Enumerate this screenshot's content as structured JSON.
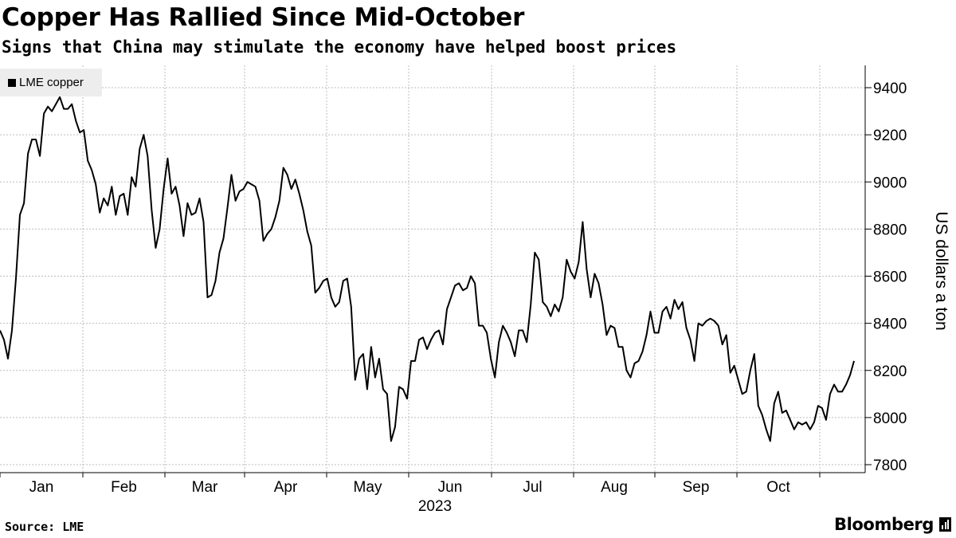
{
  "title": "Copper Has Rallied Since Mid-October",
  "subtitle": "Signs that China may stimulate the economy have helped boost prices",
  "legend": {
    "label": "LME copper",
    "color": "#000000"
  },
  "source": "Source: LME",
  "brand": {
    "name": "Bloomberg",
    "mark": "bloomberg-terminal-icon"
  },
  "chart_data": {
    "type": "line",
    "title": "Copper Has Rallied Since Mid-October",
    "subtitle": "Signs that China may stimulate the economy have helped boost prices",
    "xlabel": "2023",
    "ylabel": "US dollars a ton",
    "ylim": [
      7800,
      9400
    ],
    "yticks": [
      7800,
      8000,
      8200,
      8400,
      8600,
      8800,
      9000,
      9200,
      9400
    ],
    "x_ticks": [
      "Jan",
      "Feb",
      "Mar",
      "Apr",
      "May",
      "Jun",
      "Jul",
      "Aug",
      "Sep",
      "Oct"
    ],
    "year_label": "2023",
    "grid": true,
    "legend_position": "top-left",
    "series": [
      {
        "name": "LME copper",
        "color": "#000000",
        "points": [
          [
            0.0,
            8370
          ],
          [
            0.2,
            8330
          ],
          [
            0.4,
            8250
          ],
          [
            0.6,
            8370
          ],
          [
            0.8,
            8590
          ],
          [
            1.0,
            8860
          ],
          [
            1.2,
            8910
          ],
          [
            1.4,
            9120
          ],
          [
            1.6,
            9180
          ],
          [
            1.8,
            9180
          ],
          [
            2.0,
            9110
          ],
          [
            2.2,
            9290
          ],
          [
            2.4,
            9320
          ],
          [
            2.6,
            9300
          ],
          [
            2.8,
            9330
          ],
          [
            3.0,
            9360
          ],
          [
            3.2,
            9310
          ],
          [
            3.4,
            9310
          ],
          [
            3.6,
            9330
          ],
          [
            3.8,
            9260
          ],
          [
            4.0,
            9210
          ],
          [
            4.2,
            9220
          ],
          [
            4.4,
            9090
          ],
          [
            4.6,
            9050
          ],
          [
            4.8,
            8990
          ],
          [
            5.0,
            8870
          ],
          [
            5.2,
            8930
          ],
          [
            5.4,
            8900
          ],
          [
            5.6,
            8980
          ],
          [
            5.8,
            8860
          ],
          [
            6.0,
            8940
          ],
          [
            6.2,
            8950
          ],
          [
            6.4,
            8860
          ],
          [
            6.6,
            9020
          ],
          [
            6.8,
            8980
          ],
          [
            7.0,
            9140
          ],
          [
            7.2,
            9200
          ],
          [
            7.4,
            9110
          ],
          [
            7.6,
            8880
          ],
          [
            7.8,
            8720
          ],
          [
            8.0,
            8800
          ],
          [
            8.2,
            8970
          ],
          [
            8.4,
            9100
          ],
          [
            8.6,
            8950
          ],
          [
            8.8,
            8980
          ],
          [
            9.0,
            8900
          ],
          [
            9.2,
            8770
          ],
          [
            9.4,
            8910
          ],
          [
            9.6,
            8860
          ],
          [
            9.8,
            8870
          ],
          [
            10.0,
            8930
          ],
          [
            10.2,
            8830
          ],
          [
            10.4,
            8510
          ],
          [
            10.6,
            8520
          ],
          [
            10.8,
            8580
          ],
          [
            11.0,
            8700
          ],
          [
            11.2,
            8760
          ],
          [
            11.4,
            8890
          ],
          [
            11.6,
            9030
          ],
          [
            11.8,
            8920
          ],
          [
            12.0,
            8960
          ],
          [
            12.2,
            8970
          ],
          [
            12.4,
            9000
          ],
          [
            12.6,
            8990
          ],
          [
            12.8,
            8980
          ],
          [
            13.0,
            8920
          ],
          [
            13.2,
            8750
          ],
          [
            13.4,
            8780
          ],
          [
            13.6,
            8800
          ],
          [
            13.8,
            8850
          ],
          [
            14.0,
            8920
          ],
          [
            14.2,
            9060
          ],
          [
            14.4,
            9030
          ],
          [
            14.6,
            8970
          ],
          [
            14.8,
            9010
          ],
          [
            15.0,
            8950
          ],
          [
            15.2,
            8880
          ],
          [
            15.4,
            8790
          ],
          [
            15.6,
            8730
          ],
          [
            15.8,
            8530
          ],
          [
            16.0,
            8550
          ],
          [
            16.2,
            8580
          ],
          [
            16.4,
            8590
          ],
          [
            16.6,
            8510
          ],
          [
            16.8,
            8470
          ],
          [
            17.0,
            8490
          ],
          [
            17.2,
            8580
          ],
          [
            17.4,
            8590
          ],
          [
            17.6,
            8470
          ],
          [
            17.8,
            8160
          ],
          [
            18.0,
            8250
          ],
          [
            18.2,
            8270
          ],
          [
            18.4,
            8120
          ],
          [
            18.6,
            8300
          ],
          [
            18.8,
            8170
          ],
          [
            19.0,
            8250
          ],
          [
            19.2,
            8120
          ],
          [
            19.4,
            8100
          ],
          [
            19.6,
            7900
          ],
          [
            19.8,
            7960
          ],
          [
            20.0,
            8130
          ],
          [
            20.2,
            8120
          ],
          [
            20.4,
            8080
          ],
          [
            20.6,
            8240
          ],
          [
            20.8,
            8240
          ],
          [
            21.0,
            8330
          ],
          [
            21.2,
            8340
          ],
          [
            21.4,
            8290
          ],
          [
            21.6,
            8330
          ],
          [
            21.8,
            8360
          ],
          [
            22.0,
            8370
          ],
          [
            22.2,
            8310
          ],
          [
            22.4,
            8460
          ],
          [
            22.6,
            8510
          ],
          [
            22.8,
            8560
          ],
          [
            23.0,
            8570
          ],
          [
            23.2,
            8540
          ],
          [
            23.4,
            8550
          ],
          [
            23.6,
            8600
          ],
          [
            23.8,
            8570
          ],
          [
            24.0,
            8390
          ],
          [
            24.2,
            8390
          ],
          [
            24.4,
            8360
          ],
          [
            24.6,
            8250
          ],
          [
            24.8,
            8170
          ],
          [
            25.0,
            8320
          ],
          [
            25.2,
            8390
          ],
          [
            25.4,
            8360
          ],
          [
            25.6,
            8320
          ],
          [
            25.8,
            8260
          ],
          [
            26.0,
            8370
          ],
          [
            26.2,
            8370
          ],
          [
            26.4,
            8320
          ],
          [
            26.6,
            8480
          ],
          [
            26.8,
            8700
          ],
          [
            27.0,
            8670
          ],
          [
            27.2,
            8490
          ],
          [
            27.4,
            8470
          ],
          [
            27.6,
            8430
          ],
          [
            27.8,
            8480
          ],
          [
            28.0,
            8450
          ],
          [
            28.2,
            8510
          ],
          [
            28.4,
            8670
          ],
          [
            28.6,
            8620
          ],
          [
            28.8,
            8590
          ],
          [
            29.0,
            8660
          ],
          [
            29.2,
            8830
          ],
          [
            29.4,
            8630
          ],
          [
            29.6,
            8510
          ],
          [
            29.8,
            8610
          ],
          [
            30.0,
            8570
          ],
          [
            30.2,
            8480
          ],
          [
            30.4,
            8350
          ],
          [
            30.6,
            8390
          ],
          [
            30.8,
            8380
          ],
          [
            31.0,
            8300
          ],
          [
            31.2,
            8300
          ],
          [
            31.4,
            8200
          ],
          [
            31.6,
            8170
          ],
          [
            31.8,
            8230
          ],
          [
            32.0,
            8240
          ],
          [
            32.2,
            8280
          ],
          [
            32.4,
            8350
          ],
          [
            32.6,
            8450
          ],
          [
            32.8,
            8360
          ],
          [
            33.0,
            8360
          ],
          [
            33.2,
            8450
          ],
          [
            33.4,
            8470
          ],
          [
            33.6,
            8420
          ],
          [
            33.8,
            8500
          ],
          [
            34.0,
            8460
          ],
          [
            34.2,
            8490
          ],
          [
            34.4,
            8380
          ],
          [
            34.6,
            8330
          ],
          [
            34.8,
            8240
          ],
          [
            35.0,
            8400
          ],
          [
            35.2,
            8390
          ],
          [
            35.4,
            8410
          ],
          [
            35.6,
            8420
          ],
          [
            35.8,
            8410
          ],
          [
            36.0,
            8390
          ],
          [
            36.2,
            8310
          ],
          [
            36.4,
            8350
          ],
          [
            36.6,
            8190
          ],
          [
            36.8,
            8220
          ],
          [
            37.0,
            8160
          ],
          [
            37.2,
            8100
          ],
          [
            37.4,
            8110
          ],
          [
            37.6,
            8200
          ],
          [
            37.8,
            8270
          ],
          [
            38.0,
            8050
          ],
          [
            38.2,
            8010
          ],
          [
            38.4,
            7950
          ],
          [
            38.6,
            7900
          ],
          [
            38.8,
            8060
          ],
          [
            39.0,
            8110
          ],
          [
            39.2,
            8020
          ],
          [
            39.4,
            8030
          ],
          [
            39.6,
            7990
          ],
          [
            39.8,
            7950
          ],
          [
            40.0,
            7980
          ],
          [
            40.2,
            7970
          ],
          [
            40.4,
            7980
          ],
          [
            40.6,
            7950
          ],
          [
            40.8,
            7980
          ],
          [
            41.0,
            8050
          ],
          [
            41.2,
            8040
          ],
          [
            41.4,
            7990
          ],
          [
            41.6,
            8100
          ],
          [
            41.8,
            8140
          ],
          [
            42.0,
            8110
          ],
          [
            42.2,
            8110
          ],
          [
            42.4,
            8140
          ],
          [
            42.6,
            8180
          ],
          [
            42.8,
            8240
          ]
        ]
      }
    ]
  }
}
